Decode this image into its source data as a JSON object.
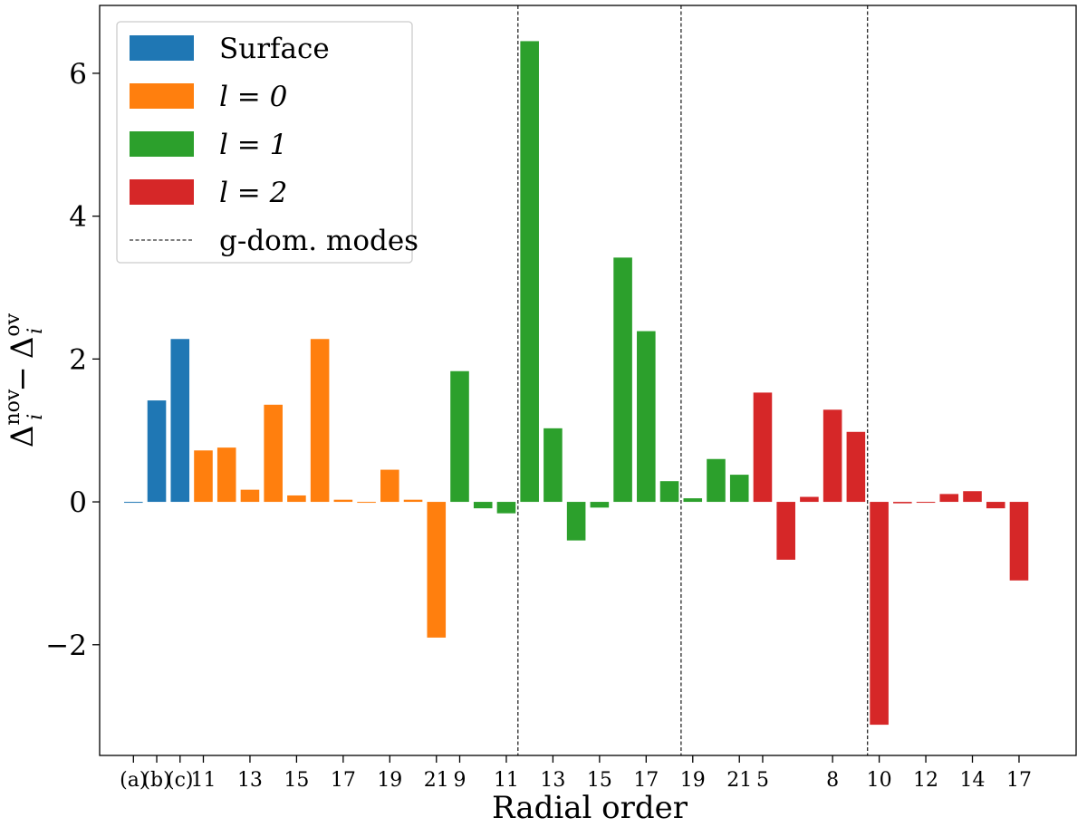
{
  "chart_data": {
    "type": "bar",
    "title": "",
    "xlabel": "Radial order",
    "ylabel": {
      "delta1": "Δ",
      "sub1": "i",
      "sup1": "nov",
      "minus": "−",
      "delta2": "Δ",
      "sub2": "i",
      "sup2": "ov"
    },
    "ylim": [
      -3.55,
      6.95
    ],
    "xlim": [
      -1.45,
      40.45
    ],
    "yticks": [
      {
        "value": -2,
        "label": "−2"
      },
      {
        "value": 0,
        "label": "0"
      },
      {
        "value": 2,
        "label": "2"
      },
      {
        "value": 4,
        "label": "4"
      },
      {
        "value": 6,
        "label": "6"
      }
    ],
    "xticks": [
      {
        "index": 0,
        "label": "(a)"
      },
      {
        "index": 1,
        "label": "(b)"
      },
      {
        "index": 2,
        "label": "(c)"
      },
      {
        "index": 3,
        "label": "11"
      },
      {
        "index": 5,
        "label": "13"
      },
      {
        "index": 7,
        "label": "15"
      },
      {
        "index": 9,
        "label": "17"
      },
      {
        "index": 11,
        "label": "19"
      },
      {
        "index": 13,
        "label": "21"
      },
      {
        "index": 14,
        "label": "9"
      },
      {
        "index": 16,
        "label": "11"
      },
      {
        "index": 18,
        "label": "13"
      },
      {
        "index": 20,
        "label": "15"
      },
      {
        "index": 22,
        "label": "17"
      },
      {
        "index": 24,
        "label": "19"
      },
      {
        "index": 26,
        "label": "21"
      },
      {
        "index": 27,
        "label": "5"
      },
      {
        "index": 30,
        "label": "8"
      },
      {
        "index": 32,
        "label": "10"
      },
      {
        "index": 34,
        "label": "12"
      },
      {
        "index": 36,
        "label": "14"
      },
      {
        "index": 38,
        "label": "17"
      }
    ],
    "series": [
      {
        "name": "Surface",
        "color": "#1f77b4",
        "start_index": 0,
        "values": [
          0.0,
          1.42,
          2.28
        ]
      },
      {
        "name": "l = 0",
        "color": "#ff7f0e",
        "start_index": 3,
        "values": [
          0.72,
          0.76,
          0.17,
          1.36,
          0.09,
          2.28,
          0.03,
          0.0,
          0.45,
          0.03,
          -1.9
        ]
      },
      {
        "name": "l = 1",
        "color": "#2ca02c",
        "start_index": 14,
        "values": [
          1.83,
          -0.09,
          -0.16,
          6.45,
          1.03,
          -0.54,
          -0.08,
          3.42,
          2.39,
          0.29,
          0.05,
          0.6,
          0.38
        ]
      },
      {
        "name": "l = 2",
        "color": "#d62728",
        "start_index": 27,
        "values": [
          1.53,
          -0.81,
          0.07,
          1.29,
          0.98,
          -3.12,
          -0.02,
          0.0,
          0.11,
          0.15,
          -0.09,
          -1.1
        ]
      }
    ],
    "vlines": {
      "name": "g-dom. modes",
      "positions": [
        16.5,
        23.5,
        31.5
      ],
      "style": "dashed",
      "color": "#000000"
    },
    "legend": {
      "position": "upper-left",
      "entries": [
        {
          "kind": "patch",
          "color": "#1f77b4",
          "text": "Surface",
          "italic": false
        },
        {
          "kind": "patch",
          "color": "#ff7f0e",
          "text": "l = 0",
          "italic": true
        },
        {
          "kind": "patch",
          "color": "#2ca02c",
          "text": "l = 1",
          "italic": true
        },
        {
          "kind": "patch",
          "color": "#d62728",
          "text": "l = 2",
          "italic": true
        },
        {
          "kind": "dashed-line",
          "color": "#000000",
          "text": "g-dom. modes",
          "italic": false
        }
      ]
    }
  }
}
